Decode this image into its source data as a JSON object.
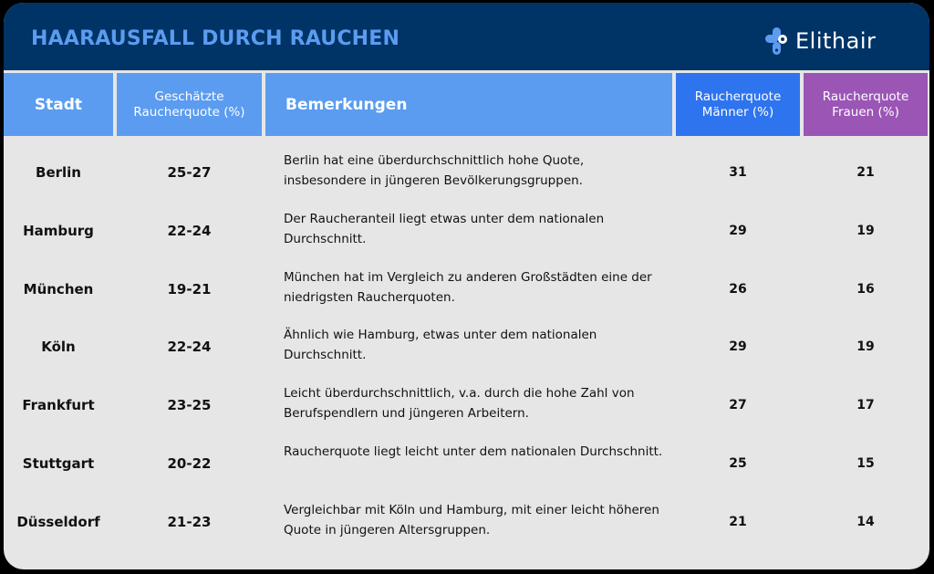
{
  "header": {
    "title": "HAARAUSFALL DURCH RAUCHEN",
    "logo_text": "Elithair",
    "logo_icon": "elithair-cross-logo-icon"
  },
  "columns": {
    "stadt": "Stadt",
    "quote": "Geschätzte Raucherquote (%)",
    "bemerkungen": "Bemerkungen",
    "maenner": "Raucherquote Männer (%)",
    "frauen": "Raucherquote Frauen (%)"
  },
  "colors": {
    "topbar": "#003366",
    "title": "#5b9cf0",
    "header_blue": "#5b9cf0",
    "header_men": "#2f74ef",
    "header_women": "#9b55b5",
    "body_bg": "#e6e6e6"
  },
  "chart_data": {
    "type": "table",
    "title": "HAARAUSFALL DURCH RAUCHEN",
    "columns": [
      "Stadt",
      "Geschätzte Raucherquote (%)",
      "Bemerkungen",
      "Raucherquote Männer (%)",
      "Raucherquote Frauen (%)"
    ],
    "rows": [
      {
        "stadt": "Berlin",
        "quote": "25-27",
        "bemerkung": "Berlin hat eine überdurchschnittlich hohe Quote, insbesondere in jüngeren Bevölkerungsgruppen.",
        "maenner": 31,
        "frauen": 21
      },
      {
        "stadt": "Hamburg",
        "quote": "22-24",
        "bemerkung": "Der Raucheranteil liegt etwas unter dem nationalen Durchschnitt.",
        "maenner": 29,
        "frauen": 19
      },
      {
        "stadt": "München",
        "quote": "19-21",
        "bemerkung": "München hat im Vergleich zu anderen Großstädten eine der niedrigsten Raucherquoten.",
        "maenner": 26,
        "frauen": 16
      },
      {
        "stadt": "Köln",
        "quote": "22-24",
        "bemerkung": "Ähnlich wie Hamburg, etwas unter dem nationalen Durchschnitt.",
        "maenner": 29,
        "frauen": 19
      },
      {
        "stadt": "Frankfurt",
        "quote": "23-25",
        "bemerkung": "Leicht überdurchschnittlich, v.a. durch die hohe Zahl von Berufspendlern und jüngeren Arbeitern.",
        "maenner": 27,
        "frauen": 17
      },
      {
        "stadt": "Stuttgart",
        "quote": "20-22",
        "bemerkung": "Raucherquote liegt leicht unter dem nationalen Durchschnitt.",
        "maenner": 25,
        "frauen": 15
      },
      {
        "stadt": "Düsseldorf",
        "quote": "21-23",
        "bemerkung": "Vergleichbar mit Köln und Hamburg, mit einer leicht höheren Quote in jüngeren Altersgruppen.",
        "maenner": 21,
        "frauen": 14
      }
    ]
  }
}
